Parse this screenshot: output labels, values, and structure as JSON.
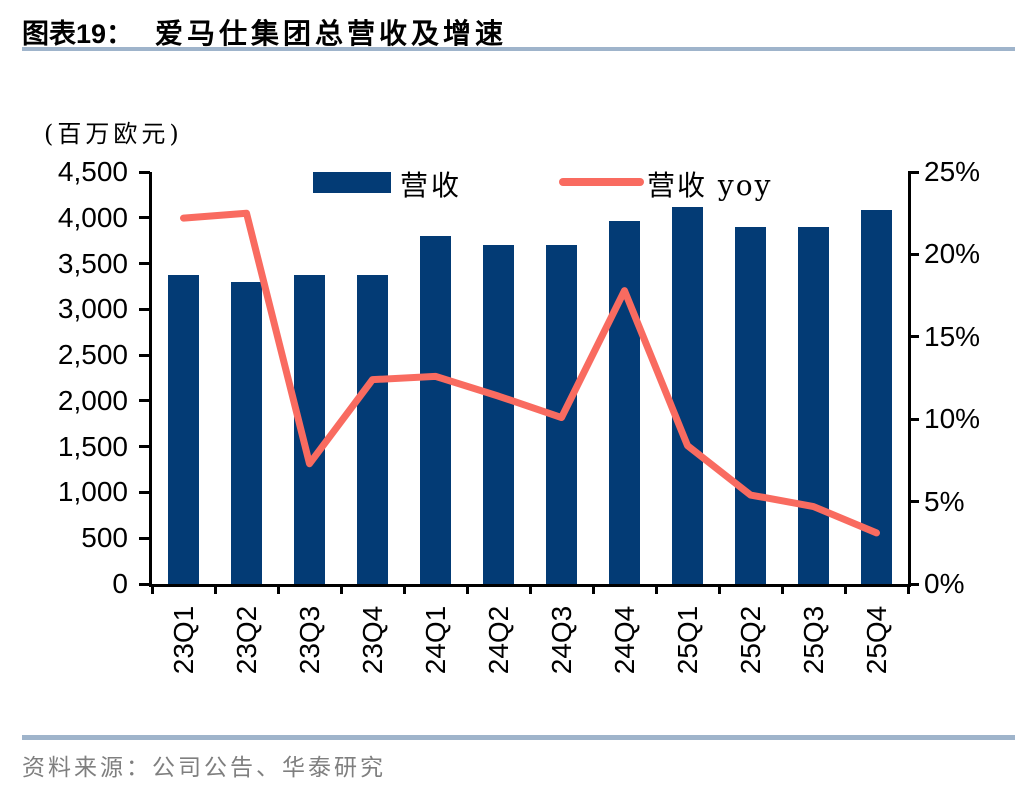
{
  "header": {
    "tag": "图表19：",
    "title": "爱马仕集团总营收及增速"
  },
  "chart_data": {
    "type": "bar",
    "title": "爱马仕集团总营收及增速",
    "categories": [
      "23Q1",
      "23Q2",
      "23Q3",
      "23Q4",
      "24Q1",
      "24Q2",
      "24Q3",
      "24Q4",
      "25Q1",
      "25Q2",
      "25Q3",
      "25Q4"
    ],
    "series": [
      {
        "name": "营收",
        "type": "bar",
        "axis": "left",
        "values": [
          3370,
          3300,
          3370,
          3370,
          3800,
          3700,
          3700,
          3960,
          4120,
          3900,
          3900,
          4090
        ]
      },
      {
        "name": "营收 yoy",
        "type": "line",
        "axis": "right",
        "values": [
          22.2,
          22.5,
          7.3,
          12.4,
          12.6,
          11.4,
          10.1,
          17.8,
          8.4,
          5.4,
          4.7,
          3.1
        ]
      }
    ],
    "left_axis": {
      "label": "(百万欧元)",
      "min": 0,
      "max": 4500,
      "step": 500
    },
    "right_axis": {
      "min": 0,
      "max": 25,
      "step": 5,
      "suffix": "%"
    },
    "legend_position": "top",
    "grid": false,
    "colors": {
      "bar_color": "#033B75",
      "line_color": "#F96B60",
      "rule_color": "#9FB4CB",
      "source_text_color": "#7F7F7F",
      "axis_color": "#000000"
    }
  },
  "footer": {
    "source": "资料来源：公司公告、华泰研究"
  }
}
